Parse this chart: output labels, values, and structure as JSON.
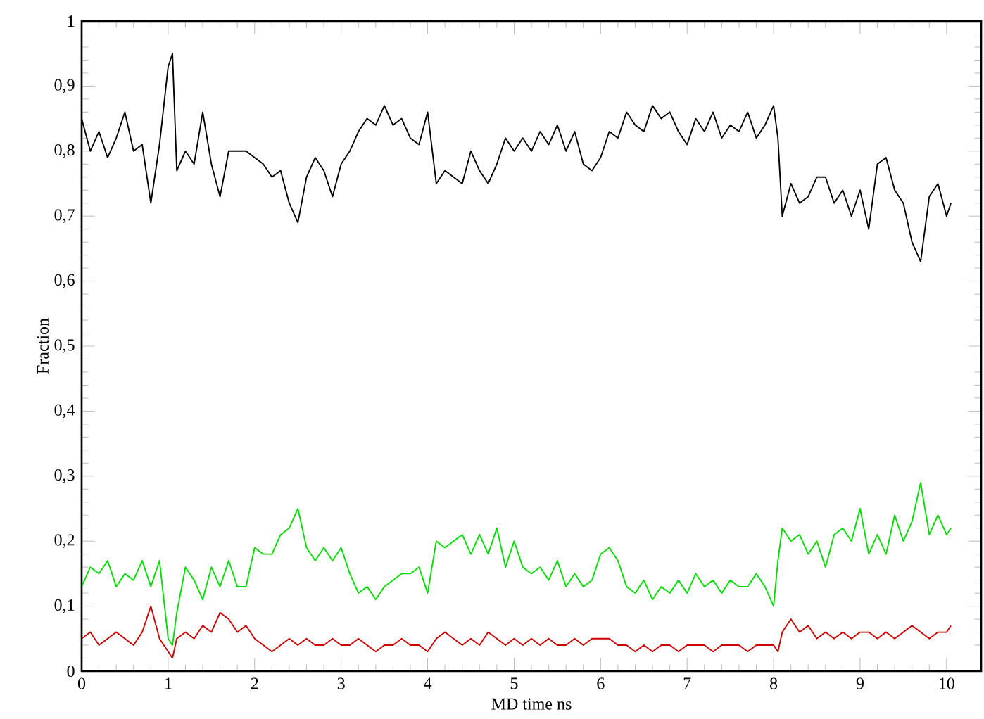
{
  "chart_data": {
    "type": "line",
    "xlabel": "MD time ns",
    "ylabel": "Fraction",
    "x": [
      0,
      0.1,
      0.2,
      0.3,
      0.4,
      0.5,
      0.6,
      0.7,
      0.8,
      0.9,
      1.0,
      1.05,
      1.1,
      1.2,
      1.3,
      1.4,
      1.5,
      1.6,
      1.7,
      1.8,
      1.9,
      2.0,
      2.1,
      2.2,
      2.3,
      2.4,
      2.5,
      2.6,
      2.7,
      2.8,
      2.9,
      3.0,
      3.1,
      3.2,
      3.3,
      3.4,
      3.5,
      3.6,
      3.7,
      3.8,
      3.9,
      4.0,
      4.1,
      4.2,
      4.3,
      4.4,
      4.5,
      4.6,
      4.7,
      4.8,
      4.9,
      5.0,
      5.1,
      5.2,
      5.3,
      5.4,
      5.5,
      5.6,
      5.7,
      5.8,
      5.9,
      6.0,
      6.1,
      6.2,
      6.3,
      6.4,
      6.5,
      6.6,
      6.7,
      6.8,
      6.9,
      7.0,
      7.1,
      7.2,
      7.3,
      7.4,
      7.5,
      7.6,
      7.7,
      7.8,
      7.9,
      8.0,
      8.05,
      8.1,
      8.2,
      8.3,
      8.4,
      8.5,
      8.6,
      8.7,
      8.8,
      8.9,
      9.0,
      9.1,
      9.2,
      9.3,
      9.4,
      9.5,
      9.6,
      9.7,
      9.8,
      9.9,
      10.0,
      10.05
    ],
    "series": [
      {
        "color": "#000000",
        "values": [
          0.85,
          0.8,
          0.83,
          0.79,
          0.82,
          0.86,
          0.8,
          0.81,
          0.72,
          0.81,
          0.93,
          0.95,
          0.77,
          0.8,
          0.78,
          0.86,
          0.78,
          0.73,
          0.8,
          0.8,
          0.8,
          0.79,
          0.78,
          0.76,
          0.77,
          0.72,
          0.69,
          0.76,
          0.79,
          0.77,
          0.73,
          0.78,
          0.8,
          0.83,
          0.85,
          0.84,
          0.87,
          0.84,
          0.85,
          0.82,
          0.81,
          0.86,
          0.75,
          0.77,
          0.76,
          0.75,
          0.8,
          0.77,
          0.75,
          0.78,
          0.82,
          0.8,
          0.82,
          0.8,
          0.83,
          0.81,
          0.84,
          0.8,
          0.83,
          0.78,
          0.77,
          0.79,
          0.83,
          0.82,
          0.86,
          0.84,
          0.83,
          0.87,
          0.85,
          0.86,
          0.83,
          0.81,
          0.85,
          0.83,
          0.86,
          0.82,
          0.84,
          0.83,
          0.86,
          0.82,
          0.84,
          0.87,
          0.82,
          0.7,
          0.75,
          0.72,
          0.73,
          0.76,
          0.76,
          0.72,
          0.74,
          0.7,
          0.74,
          0.68,
          0.78,
          0.79,
          0.74,
          0.72,
          0.66,
          0.63,
          0.73,
          0.75,
          0.7,
          0.72
        ]
      },
      {
        "color": "#00dd00",
        "values": [
          0.13,
          0.16,
          0.15,
          0.17,
          0.13,
          0.15,
          0.14,
          0.17,
          0.13,
          0.17,
          0.05,
          0.04,
          0.09,
          0.16,
          0.14,
          0.11,
          0.16,
          0.13,
          0.17,
          0.13,
          0.13,
          0.19,
          0.18,
          0.18,
          0.21,
          0.22,
          0.25,
          0.19,
          0.17,
          0.19,
          0.17,
          0.19,
          0.15,
          0.12,
          0.13,
          0.11,
          0.13,
          0.14,
          0.15,
          0.15,
          0.16,
          0.12,
          0.2,
          0.19,
          0.2,
          0.21,
          0.18,
          0.21,
          0.18,
          0.22,
          0.16,
          0.2,
          0.16,
          0.15,
          0.16,
          0.14,
          0.17,
          0.13,
          0.15,
          0.13,
          0.14,
          0.18,
          0.19,
          0.17,
          0.13,
          0.12,
          0.14,
          0.11,
          0.13,
          0.12,
          0.14,
          0.12,
          0.15,
          0.13,
          0.14,
          0.12,
          0.14,
          0.13,
          0.13,
          0.15,
          0.13,
          0.1,
          0.17,
          0.22,
          0.2,
          0.21,
          0.18,
          0.2,
          0.16,
          0.21,
          0.22,
          0.2,
          0.25,
          0.18,
          0.21,
          0.18,
          0.24,
          0.2,
          0.23,
          0.29,
          0.21,
          0.24,
          0.21,
          0.22
        ]
      },
      {
        "color": "#cc0000",
        "values": [
          0.05,
          0.06,
          0.04,
          0.05,
          0.06,
          0.05,
          0.04,
          0.06,
          0.1,
          0.05,
          0.03,
          0.02,
          0.05,
          0.06,
          0.05,
          0.07,
          0.06,
          0.09,
          0.08,
          0.06,
          0.07,
          0.05,
          0.04,
          0.03,
          0.04,
          0.05,
          0.04,
          0.05,
          0.04,
          0.04,
          0.05,
          0.04,
          0.04,
          0.05,
          0.04,
          0.03,
          0.04,
          0.04,
          0.05,
          0.04,
          0.04,
          0.03,
          0.05,
          0.06,
          0.05,
          0.04,
          0.05,
          0.04,
          0.06,
          0.05,
          0.04,
          0.05,
          0.04,
          0.05,
          0.04,
          0.05,
          0.04,
          0.04,
          0.05,
          0.04,
          0.05,
          0.05,
          0.05,
          0.04,
          0.04,
          0.03,
          0.04,
          0.03,
          0.04,
          0.04,
          0.03,
          0.04,
          0.04,
          0.04,
          0.03,
          0.04,
          0.04,
          0.04,
          0.03,
          0.04,
          0.04,
          0.04,
          0.03,
          0.06,
          0.08,
          0.06,
          0.07,
          0.05,
          0.06,
          0.05,
          0.06,
          0.05,
          0.06,
          0.06,
          0.05,
          0.06,
          0.05,
          0.06,
          0.07,
          0.06,
          0.05,
          0.06,
          0.06,
          0.07
        ]
      }
    ],
    "xlim": [
      0,
      10.4
    ],
    "ylim": [
      0,
      1
    ],
    "xticks": [
      0,
      1,
      2,
      3,
      4,
      5,
      6,
      7,
      8,
      9,
      10
    ],
    "yticks": [
      0,
      {
        "value": 0.1,
        "label": "0,1"
      },
      {
        "value": 0.2,
        "label": "0,2"
      },
      {
        "value": 0.3,
        "label": "0,3"
      },
      {
        "value": 0.4,
        "label": "0,4"
      },
      {
        "value": 0.5,
        "label": "0,5"
      },
      {
        "value": 0.6,
        "label": "0,6"
      },
      {
        "value": 0.7,
        "label": "0,7"
      },
      {
        "value": 0.8,
        "label": "0,8"
      },
      {
        "value": 0.9,
        "label": "0,9"
      },
      1
    ],
    "grid": false,
    "marker": "none",
    "line_style": "solid"
  }
}
